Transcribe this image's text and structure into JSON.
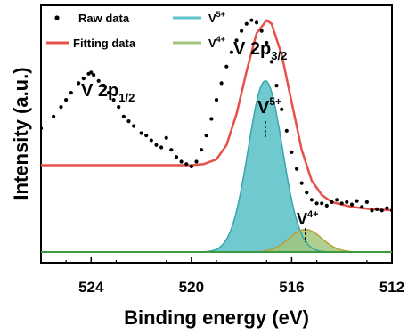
{
  "chart_data": {
    "type": "line",
    "title": "",
    "xlabel": "Binding energy (eV)",
    "ylabel": "Intensity (a.u.)",
    "xlim": [
      526,
      512
    ],
    "ylim": [
      0,
      1.0
    ],
    "x_reversed": true,
    "x_ticks": [
      524,
      520,
      516,
      512
    ],
    "y_ticks_shown": false,
    "grid": false,
    "legend_position": "top-left",
    "legend": {
      "raw": "Raw data",
      "fit": "Fitting data",
      "v5": "V",
      "v5_sup": "5+",
      "v4": "V",
      "v4_sup": "4+"
    },
    "annotations": {
      "p32_main": "V 2p",
      "p32_sub": "3/2",
      "p12_main": "V 2p",
      "p12_sub": "1/2",
      "v5_main": "V",
      "v5_sup": "5+",
      "v4_main": "V",
      "v4_sup": "4+"
    },
    "colors": {
      "raw": "#000000",
      "fit": "#e8504a",
      "v5_fill": "#5fc3c9",
      "v5_line": "#37a6ae",
      "v4_fill": "#a2c77c",
      "v4_line": "#b8a035",
      "baseline": "#3e9a3e"
    },
    "series": [
      {
        "name": "Raw data",
        "x": [
          526,
          525.5,
          525.2,
          525,
          524.8,
          524.5,
          524.3,
          524.1,
          524,
          523.9,
          523.7,
          523.5,
          523.3,
          523.1,
          522.9,
          522.7,
          522.5,
          522.3,
          522,
          521.8,
          521.6,
          521.4,
          521.2,
          521.0,
          520.8,
          520.6,
          520.4,
          520.2,
          520,
          519.8,
          519.6,
          519.4,
          519.2,
          519,
          518.8,
          518.6,
          518.4,
          518.2,
          518,
          517.8,
          517.6,
          517.4,
          517.2,
          517.0,
          516.8,
          516.6,
          516.4,
          516.2,
          516,
          515.8,
          515.6,
          515.4,
          515.2,
          515,
          514.8,
          514.6,
          514.4,
          514.2,
          514,
          513.8,
          513.6,
          513.4,
          513.2,
          513,
          512.8,
          512.6,
          512.4,
          512.2,
          512
        ],
        "y": [
          0.52,
          0.57,
          0.61,
          0.64,
          0.67,
          0.71,
          0.73,
          0.75,
          0.755,
          0.745,
          0.72,
          0.7,
          0.67,
          0.64,
          0.61,
          0.57,
          0.55,
          0.53,
          0.5,
          0.49,
          0.47,
          0.45,
          0.44,
          0.48,
          0.43,
          0.4,
          0.38,
          0.37,
          0.36,
          0.38,
          0.43,
          0.49,
          0.56,
          0.64,
          0.71,
          0.78,
          0.84,
          0.89,
          0.93,
          0.96,
          0.975,
          0.965,
          0.93,
          0.88,
          0.8,
          0.7,
          0.6,
          0.51,
          0.42,
          0.35,
          0.29,
          0.25,
          0.22,
          0.205,
          0.205,
          0.195,
          0.21,
          0.22,
          0.205,
          0.21,
          0.2,
          0.215,
          0.19,
          0.21,
          0.175,
          0.18,
          0.175,
          0.185,
          0.175
        ]
      },
      {
        "name": "Fitting data",
        "x": [
          526,
          522,
          520,
          519.5,
          519,
          518.6,
          518.2,
          517.8,
          517.4,
          517.0,
          516.8,
          516.4,
          516.0,
          515.6,
          515.2,
          514.8,
          514.4,
          514.0,
          513.6,
          513.2,
          512.8,
          512.4,
          512
        ],
        "y": [
          0.365,
          0.365,
          0.365,
          0.37,
          0.39,
          0.45,
          0.58,
          0.76,
          0.92,
          0.975,
          0.96,
          0.83,
          0.63,
          0.43,
          0.3,
          0.24,
          0.21,
          0.2,
          0.19,
          0.185,
          0.18,
          0.178,
          0.176
        ]
      },
      {
        "name": "V5+",
        "center": 517.05,
        "amplitude": 0.72,
        "sigma": 0.68
      },
      {
        "name": "V4+",
        "center": 515.45,
        "amplitude": 0.095,
        "sigma": 0.65
      }
    ]
  }
}
